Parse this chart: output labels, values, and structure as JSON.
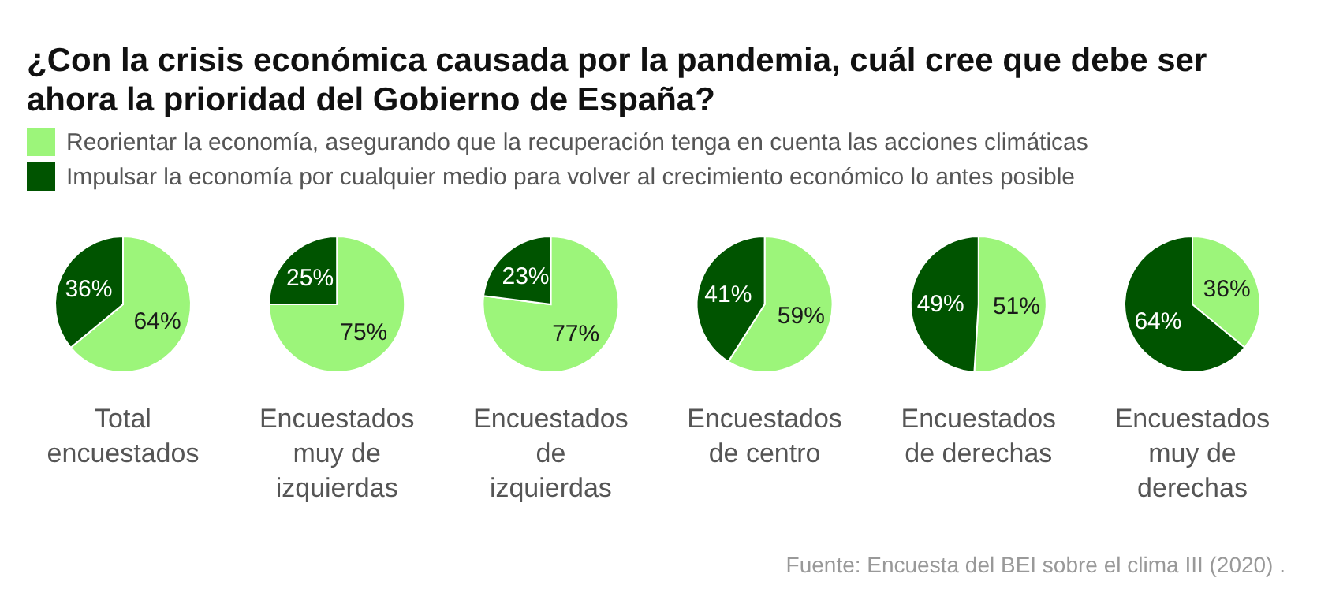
{
  "chart_data": [
    {
      "type": "pie",
      "title": "¿Con la crisis económica causada por la pandemia, cuál cree que debe ser ahora la prioridad del Gobierno de España?",
      "legend": "top right",
      "xlabel": "Total encuestados",
      "categories": [
        "Reorientar la economía, asegurando que la recuperación tenga en cuenta las acciones climáticas",
        "Impulsar la economía por cualquier medio para volver al crecimiento económico lo antes posible"
      ],
      "values": [
        64,
        36
      ],
      "colors": [
        "#9cf57a",
        "#005400"
      ],
      "value_labels": [
        "64%",
        "36%"
      ]
    },
    {
      "type": "pie",
      "xlabel": "Encuestados muy de izquierdas",
      "values": [
        75,
        25
      ],
      "colors": [
        "#9cf57a",
        "#005400"
      ],
      "value_labels": [
        "75%",
        "25%"
      ]
    },
    {
      "type": "pie",
      "xlabel": "Encuestados de izquierdas",
      "values": [
        77,
        23
      ],
      "colors": [
        "#9cf57a",
        "#005400"
      ],
      "value_labels": [
        "77%",
        "23%"
      ]
    },
    {
      "type": "pie",
      "xlabel": "Encuestados de centro",
      "values": [
        59,
        41
      ],
      "colors": [
        "#9cf57a",
        "#005400"
      ],
      "value_labels": [
        "59%",
        "41%"
      ]
    },
    {
      "type": "pie",
      "xlabel": "Encuestados de derechas",
      "values": [
        51,
        49
      ],
      "colors": [
        "#9cf57a",
        "#005400"
      ],
      "value_labels": [
        "51%",
        "49%"
      ]
    },
    {
      "type": "pie",
      "xlabel": "Encuestados muy de derechas",
      "values": [
        36,
        64
      ],
      "colors": [
        "#9cf57a",
        "#005400"
      ],
      "value_labels": [
        "36%",
        "64%"
      ],
      "annotations": [
        "Fuente: Encuesta del BEI sobre el clima III (2020) ."
      ]
    }
  ]
}
